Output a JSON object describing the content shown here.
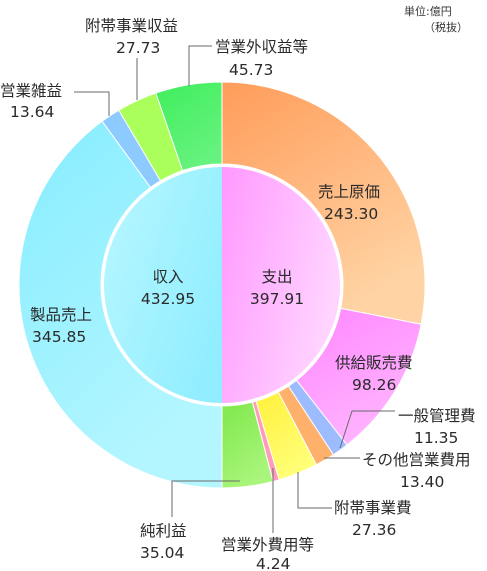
{
  "unit": {
    "line1": "単位:億円",
    "line2": "（税抜）"
  },
  "chart_data": {
    "type": "pie",
    "inner": [
      {
        "label": "収入",
        "value": 432.95,
        "color": "#b8f7ff",
        "color2": "#92eeff"
      },
      {
        "label": "支出",
        "value": 397.91,
        "color": "#ff98ff",
        "color2": "#ffd4ff"
      }
    ],
    "outer_expense": [
      {
        "label": "売上原価",
        "value": 243.3,
        "color": "#ff9c5a",
        "color2": "#ffd3a3"
      },
      {
        "label": "供給販売費",
        "value": 98.26,
        "color": "#ff86ff",
        "color2": "#ffb4ff"
      },
      {
        "label": "一般管理費",
        "value": 11.35,
        "color": "#9dbcff"
      },
      {
        "label": "その他営業費用",
        "value": 13.4,
        "color": "#ffb06a"
      },
      {
        "label": "附帯事業費",
        "value": 27.36,
        "color": "#fff03a",
        "color2": "#ffff78"
      },
      {
        "label": "営業外費用等",
        "value": 4.24,
        "color": "#ff9ab8"
      },
      {
        "label": "純利益",
        "value": 35.04,
        "color": "#7ee84a",
        "color2": "#aaf57c"
      }
    ],
    "outer_revenue": [
      {
        "label": "製品売上",
        "value": 345.85,
        "color": "#86edff",
        "color2": "#b4f6ff"
      },
      {
        "label": "営業雑益",
        "value": 13.64,
        "color": "#8ccaff"
      },
      {
        "label": "附帯事業収益",
        "value": 27.73,
        "color": "#aaff5a"
      },
      {
        "label": "営業外収益等",
        "value": 45.73,
        "color": "#3fee5c",
        "color2": "#66f27e"
      }
    ]
  }
}
